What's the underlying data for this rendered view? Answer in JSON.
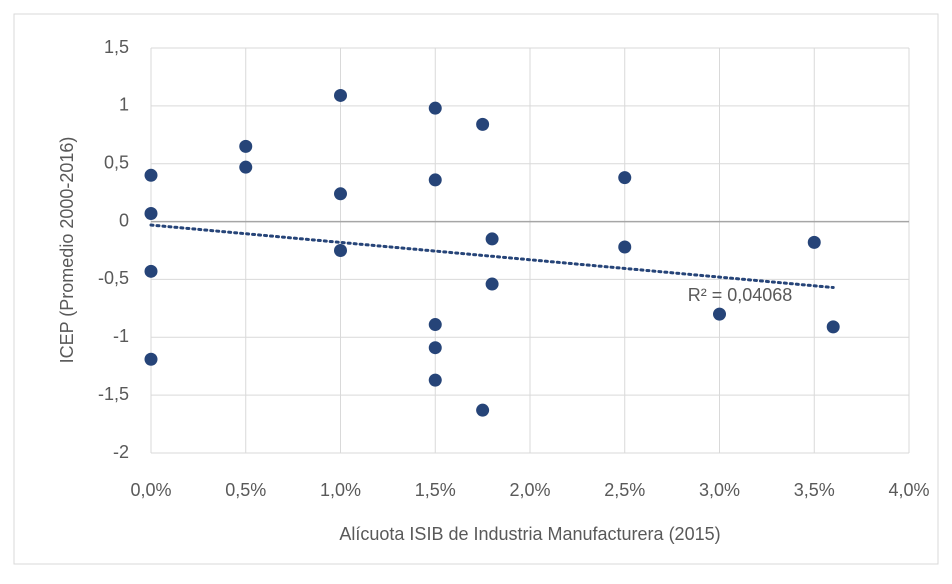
{
  "chart_data": {
    "type": "scatter",
    "x_label": "Alícuota  ISIB de Industria  Manufacturera  (2015)",
    "y_label": "ICEP  (Promedio  2000-2016)",
    "series": [
      {
        "color": "#264478",
        "x": [
          0,
          0,
          0,
          0,
          0.5,
          0.5,
          1.0,
          1.0,
          1.0,
          1.5,
          1.5,
          1.5,
          1.5,
          1.5,
          1.75,
          1.75,
          1.8,
          1.8,
          2.5,
          2.5,
          3.0,
          3.5,
          3.6
        ],
        "values": [
          0.4,
          0.07,
          -0.43,
          -1.19,
          0.65,
          0.47,
          1.09,
          0.24,
          -0.25,
          0.98,
          0.36,
          -0.89,
          -1.09,
          -1.37,
          0.84,
          -1.63,
          -0.15,
          -0.54,
          0.38,
          -0.22,
          -0.8,
          -0.18,
          -0.91
        ]
      }
    ],
    "trendline": {
      "color": "#264478",
      "x": [
        0,
        3.6
      ],
      "values": [
        -0.03,
        -0.57
      ]
    },
    "annotation": "R² = 0,04068",
    "xlim": [
      0,
      4
    ],
    "ylim": [
      -2,
      1.5
    ],
    "xticks": [
      {
        "value": 0,
        "label": "0,0%"
      },
      {
        "value": 0.5,
        "label": "0,5%"
      },
      {
        "value": 1,
        "label": "1,0%"
      },
      {
        "value": 1.5,
        "label": "1,5%"
      },
      {
        "value": 2,
        "label": "2,0%"
      },
      {
        "value": 2.5,
        "label": "2,5%"
      },
      {
        "value": 3,
        "label": "3,0%"
      },
      {
        "value": 3.5,
        "label": "3,5%"
      },
      {
        "value": 4,
        "label": "4,0%"
      }
    ],
    "yticks": [
      -2,
      {
        "value": -1.5,
        "label": "-1,5"
      },
      -1,
      {
        "value": -0.5,
        "label": "-0,5"
      },
      0,
      {
        "value": 0.5,
        "label": "0,5"
      },
      1,
      {
        "value": 1.5,
        "label": "1,5"
      }
    ],
    "grid": true
  }
}
